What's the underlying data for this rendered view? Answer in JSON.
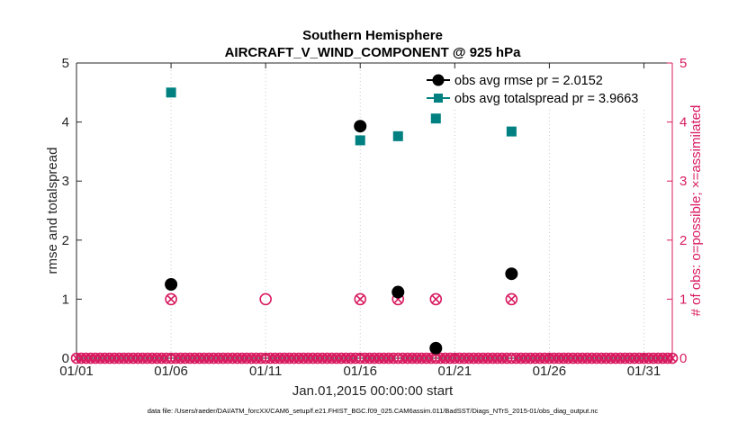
{
  "chart_data": {
    "type": "scatter",
    "title": "Southern Hemisphere",
    "subtitle": "AIRCRAFT_V_WIND_COMPONENT @ 925 hPa",
    "xlabel": "Jan.01,2015 00:00:00 start",
    "ylabel": "rmse and totalspread",
    "ylabel_right": "# of obs: o=possible; ×=assimilated",
    "xlim": [
      1,
      32.5
    ],
    "ylim": [
      0,
      5
    ],
    "ylim_right": [
      0,
      5
    ],
    "x_ticks": [
      1,
      6,
      11,
      16,
      21,
      26,
      31
    ],
    "x_tick_labels": [
      "01/01",
      "01/06",
      "01/11",
      "01/16",
      "01/21",
      "01/26",
      "01/31"
    ],
    "y_ticks": [
      0,
      1,
      2,
      3,
      4,
      5
    ],
    "y_tick_labels": [
      "0",
      "1",
      "2",
      "3",
      "4",
      "5"
    ],
    "legend_position": "top-right",
    "grid": "x-dotted",
    "series": [
      {
        "name": "obs avg rmse pr = 2.0152",
        "color": "#000000",
        "marker": "circle",
        "axis": "left",
        "x": [
          6,
          16,
          18,
          20,
          24
        ],
        "values": [
          1.25,
          3.93,
          1.12,
          0.17,
          1.43
        ]
      },
      {
        "name": "obs avg totalspread pr = 3.9663",
        "color": "#008080",
        "marker": "square",
        "axis": "left",
        "x": [
          6,
          16,
          18,
          20,
          24
        ],
        "values": [
          4.5,
          3.69,
          3.76,
          4.06,
          3.84
        ]
      },
      {
        "name": "obs possible",
        "color": "#d81b60",
        "marker": "open-circle",
        "axis": "right",
        "x": [
          6,
          11,
          16,
          18,
          20,
          24
        ],
        "values": [
          1,
          1,
          1,
          1,
          1,
          1
        ],
        "baseline_value": 0,
        "baseline_step_days": 0.25
      },
      {
        "name": "obs assimilated",
        "color": "#d81b60",
        "marker": "x",
        "axis": "right",
        "x": [
          6,
          16,
          18,
          20,
          24
        ],
        "values": [
          1,
          1,
          1,
          1,
          1
        ],
        "baseline_value": 0,
        "baseline_step_days": 0.25
      }
    ],
    "footer": "data file: /Users/raeder/DAI/ATM_forcXX/CAM6_setup/f.e21.FHIST_BGC.f09_025.CAM6assim.011/BadSST/Diags_NTrS_2015-01/obs_diag_output.nc"
  },
  "colors": {
    "rmse": "#000000",
    "spread": "#008080",
    "obs": "#d81b60",
    "axis_left": "#262626"
  }
}
